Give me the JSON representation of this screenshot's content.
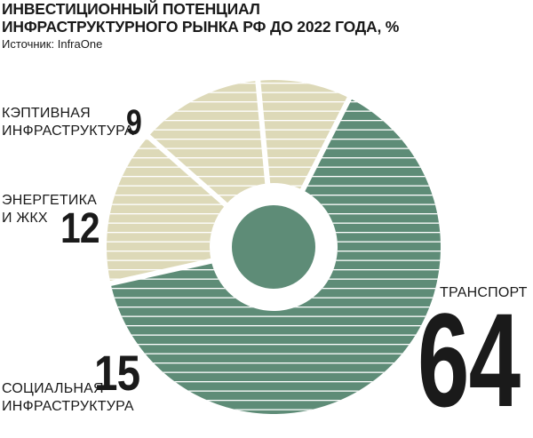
{
  "chart_data": {
    "type": "pie",
    "title": "ИНВЕСТИЦИОННЫЙ ПОТЕНЦИАЛ\nИНФРАСТРУКТУРНОГО РЫНКА РФ ДО 2022 ГОДА, %",
    "source": "Источник: InfraOne",
    "slices": [
      {
        "label": "ТРАНСПОРТ",
        "value": 64,
        "value_text": "64",
        "color": "#5e8c77"
      },
      {
        "label": "СОЦИАЛЬНАЯ\nИНФРАСТРУКТУРА",
        "value": 15,
        "value_text": "15",
        "color": "#ddd9b8"
      },
      {
        "label": "ЭНЕРГЕТИКА\nИ ЖКХ",
        "value": 12,
        "value_text": "12",
        "color": "#ddd9b8"
      },
      {
        "label": "КЭПТИВНАЯ\nИНФРАСТРУКТУРА",
        "value": 9,
        "value_text": "9",
        "color": "#ddd9b8"
      }
    ],
    "legend": "none"
  },
  "colors": {
    "center": "#5e8c77",
    "stripe": "#ffffff",
    "text": "#1a1a1a"
  }
}
